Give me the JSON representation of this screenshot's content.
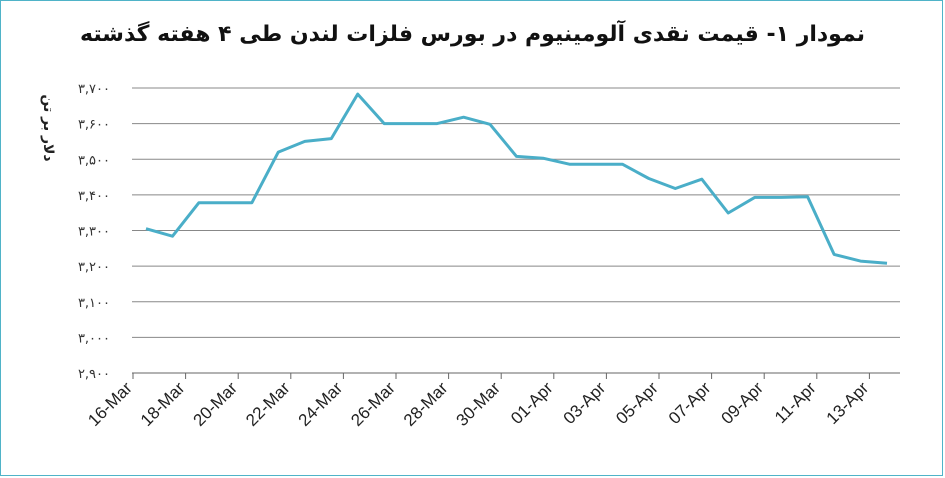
{
  "chart_data": {
    "type": "line",
    "title": "نمودار ۱- قیمت نقدی آلومینیوم در بورس فلزات لندن طی ۴ هفته گذشته",
    "ylabel": "دلار بر تن",
    "xlabel": "",
    "ylim": [
      2900,
      3700
    ],
    "yticks": [
      2900,
      3000,
      3100,
      3200,
      3300,
      3400,
      3500,
      3600,
      3700
    ],
    "ytick_labels": [
      "۲,۹۰۰",
      "۳,۰۰۰",
      "۳,۱۰۰",
      "۳,۲۰۰",
      "۳,۳۰۰",
      "۳,۴۰۰",
      "۳,۵۰۰",
      "۳,۶۰۰",
      "۳,۷۰۰"
    ],
    "x_tick_labels": [
      "16-Mar",
      "18-Mar",
      "20-Mar",
      "22-Mar",
      "24-Mar",
      "26-Mar",
      "28-Mar",
      "30-Mar",
      "01-Apr",
      "03-Apr",
      "05-Apr",
      "07-Apr",
      "09-Apr",
      "11-Apr",
      "13-Apr"
    ],
    "grid": true,
    "line_color": "#4aaec8",
    "series": [
      {
        "values": [
          3305,
          3284,
          3378,
          3378,
          3378,
          3520,
          3550,
          3558,
          3683,
          3600,
          3600,
          3600,
          3618,
          3598,
          3508,
          3503,
          3486,
          3486,
          3486,
          3446,
          3418,
          3444,
          3349,
          3393,
          3393,
          3395,
          3233,
          3214,
          3208
        ]
      }
    ]
  }
}
